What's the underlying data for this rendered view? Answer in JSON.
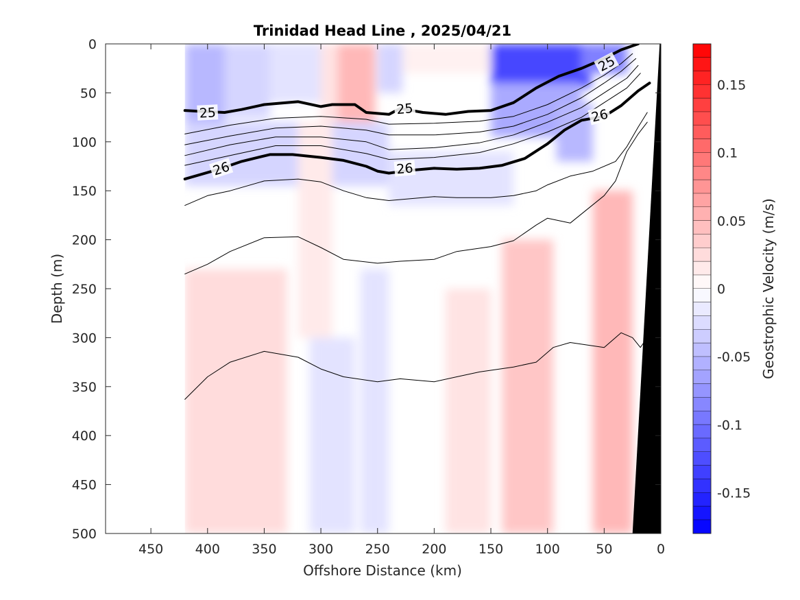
{
  "chart_data": {
    "type": "heatmap",
    "title": "Trinidad Head Line , 2025/04/21",
    "xlabel": "Offshore Distance (km)",
    "ylabel": "Depth (m)",
    "xlim": [
      490,
      0
    ],
    "ylim": [
      0,
      500
    ],
    "x_reversed": true,
    "y_reversed": true,
    "x_ticks": [
      450,
      400,
      350,
      300,
      250,
      200,
      150,
      100,
      50,
      0
    ],
    "y_ticks": [
      0,
      50,
      100,
      150,
      200,
      250,
      300,
      350,
      400,
      450,
      500
    ],
    "colorbar": {
      "label": "Geostrophic Velocity (m/s)",
      "range": [
        -0.18,
        0.18
      ],
      "step": 0.01,
      "ticks": [
        0.15,
        0.1,
        0.05,
        0,
        -0.05,
        -0.1,
        -0.15
      ],
      "tick_labels": [
        "0.15",
        "0.1",
        "0.05",
        "0",
        "-0.05",
        "-0.1",
        "-0.15"
      ],
      "negative_color": "#0000ff",
      "positive_color": "#ff0000",
      "zero_color": "#ffffff"
    },
    "data_extent_km": [
      420,
      0
    ],
    "velocity_field": [
      {
        "x": [
          420,
          385
        ],
        "depth": [
          0,
          105
        ],
        "value": -0.05
      },
      {
        "x": [
          385,
          345
        ],
        "depth": [
          0,
          75
        ],
        "value": -0.03
      },
      {
        "x": [
          345,
          300
        ],
        "depth": [
          0,
          60
        ],
        "value": -0.02
      },
      {
        "x": [
          300,
          285
        ],
        "depth": [
          0,
          110
        ],
        "value": 0.02
      },
      {
        "x": [
          285,
          252
        ],
        "depth": [
          0,
          120
        ],
        "value": 0.05
      },
      {
        "x": [
          250,
          228
        ],
        "depth": [
          0,
          50
        ],
        "value": -0.03
      },
      {
        "x": [
          228,
          150
        ],
        "depth": [
          0,
          30
        ],
        "value": 0.01
      },
      {
        "x": [
          150,
          62
        ],
        "depth": [
          0,
          45
        ],
        "value": -0.13
      },
      {
        "x": [
          150,
          70
        ],
        "depth": [
          40,
          95
        ],
        "value": -0.06
      },
      {
        "x": [
          70,
          30
        ],
        "depth": [
          0,
          30
        ],
        "value": -0.09
      },
      {
        "x": [
          420,
          240
        ],
        "depth": [
          80,
          145
        ],
        "value": -0.03
      },
      {
        "x": [
          240,
          130
        ],
        "depth": [
          110,
          165
        ],
        "value": -0.02
      },
      {
        "x": [
          420,
          330
        ],
        "depth": [
          230,
          500
        ],
        "value": 0.025
      },
      {
        "x": [
          320,
          290
        ],
        "depth": [
          80,
          300
        ],
        "value": 0.015
      },
      {
        "x": [
          310,
          270
        ],
        "depth": [
          300,
          500
        ],
        "value": -0.02
      },
      {
        "x": [
          265,
          240
        ],
        "depth": [
          230,
          500
        ],
        "value": -0.02
      },
      {
        "x": [
          190,
          150
        ],
        "depth": [
          250,
          500
        ],
        "value": 0.02
      },
      {
        "x": [
          140,
          95
        ],
        "depth": [
          200,
          500
        ],
        "value": 0.04
      },
      {
        "x": [
          60,
          25
        ],
        "depth": [
          150,
          500
        ],
        "value": 0.05
      },
      {
        "x": [
          92,
          60
        ],
        "depth": [
          60,
          120
        ],
        "value": -0.05
      }
    ],
    "isopycnals": [
      {
        "level": 25,
        "bold": true,
        "label": "25",
        "x": [
          420,
          405,
          385,
          370,
          350,
          320,
          300,
          290,
          270,
          260,
          240,
          230,
          210,
          190,
          170,
          150,
          130,
          110,
          90,
          70,
          50,
          35,
          20
        ],
        "y": [
          68,
          69,
          70,
          67,
          62,
          59,
          64,
          62,
          62,
          70,
          72,
          66,
          70,
          72,
          69,
          68,
          60,
          45,
          33,
          25,
          15,
          6,
          0
        ]
      },
      {
        "level": 25.2,
        "bold": false,
        "x": [
          420,
          380,
          340,
          300,
          260,
          240,
          200,
          160,
          130,
          100,
          70,
          50,
          35,
          25
        ],
        "y": [
          92,
          83,
          76,
          74,
          77,
          82,
          81,
          79,
          74,
          62,
          45,
          32,
          20,
          10
        ]
      },
      {
        "level": 25.4,
        "bold": false,
        "x": [
          420,
          380,
          340,
          300,
          260,
          240,
          200,
          160,
          130,
          100,
          70,
          50,
          35,
          22
        ],
        "y": [
          103,
          94,
          86,
          84,
          88,
          93,
          93,
          90,
          84,
          72,
          55,
          40,
          28,
          15
        ]
      },
      {
        "level": 25.6,
        "bold": false,
        "x": [
          420,
          380,
          340,
          300,
          260,
          240,
          200,
          160,
          130,
          100,
          70,
          50,
          30,
          20
        ],
        "y": [
          114,
          103,
          95,
          95,
          100,
          108,
          106,
          101,
          93,
          80,
          65,
          50,
          35,
          22
        ]
      },
      {
        "level": 25.8,
        "bold": false,
        "x": [
          420,
          380,
          340,
          300,
          260,
          240,
          200,
          160,
          130,
          100,
          70,
          50,
          30,
          18
        ],
        "y": [
          124,
          114,
          104,
          104,
          112,
          118,
          116,
          111,
          102,
          90,
          75,
          60,
          45,
          30
        ]
      },
      {
        "level": 26,
        "bold": true,
        "label": "26",
        "x": [
          420,
          390,
          370,
          345,
          325,
          300,
          280,
          260,
          250,
          240,
          220,
          200,
          180,
          160,
          140,
          120,
          100,
          85,
          70,
          50,
          35,
          20,
          10
        ],
        "y": [
          138,
          128,
          120,
          113,
          113,
          116,
          119,
          125,
          130,
          132,
          129,
          127,
          128,
          127,
          124,
          117,
          102,
          88,
          78,
          74,
          63,
          48,
          40
        ]
      },
      {
        "level": 26.2,
        "bold": false,
        "x": [
          420,
          400,
          380,
          350,
          320,
          300,
          280,
          260,
          240,
          220,
          200,
          180,
          150,
          130,
          110,
          100,
          80,
          60,
          40,
          30,
          20,
          12
        ],
        "y": [
          165,
          155,
          150,
          140,
          138,
          141,
          150,
          157,
          160,
          158,
          156,
          157,
          157,
          155,
          150,
          144,
          135,
          130,
          120,
          105,
          85,
          70
        ]
      },
      {
        "level": 26.4,
        "bold": false,
        "x": [
          420,
          400,
          380,
          350,
          320,
          300,
          280,
          250,
          230,
          200,
          180,
          150,
          130,
          110,
          100,
          80,
          50,
          40,
          30,
          20,
          12
        ],
        "y": [
          235,
          225,
          212,
          198,
          197,
          208,
          220,
          224,
          222,
          220,
          212,
          207,
          201,
          185,
          178,
          183,
          155,
          140,
          110,
          92,
          80
        ]
      },
      {
        "level": 26.6,
        "bold": false,
        "x": [
          420,
          400,
          380,
          350,
          320,
          300,
          280,
          250,
          230,
          200,
          180,
          160,
          130,
          110,
          95,
          80,
          50,
          35,
          25,
          18,
          12
        ],
        "y": [
          363,
          340,
          325,
          314,
          320,
          332,
          340,
          345,
          342,
          345,
          340,
          335,
          330,
          325,
          310,
          305,
          310,
          295,
          300,
          310,
          300
        ]
      }
    ],
    "contour_labels": [
      {
        "text": "25",
        "x": 400,
        "y": 70,
        "angle": -3
      },
      {
        "text": "25",
        "x": 226,
        "y": 66,
        "angle": -5
      },
      {
        "text": "25",
        "x": 48,
        "y": 20,
        "angle": -28
      },
      {
        "text": "26",
        "x": 388,
        "y": 127,
        "angle": -18
      },
      {
        "text": "26",
        "x": 226,
        "y": 127,
        "angle": -5
      },
      {
        "text": "26",
        "x": 54,
        "y": 73,
        "angle": -14
      }
    ],
    "bathymetry": {
      "x": [
        25,
        0,
        0,
        1
      ],
      "y": [
        500,
        500,
        0,
        0
      ]
    }
  }
}
